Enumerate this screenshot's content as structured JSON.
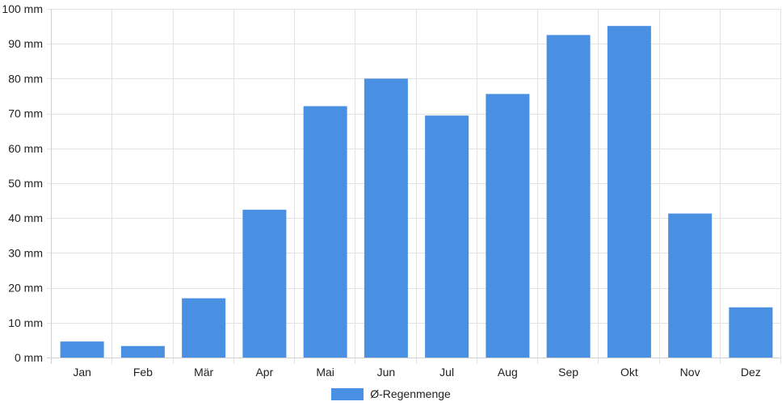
{
  "colors": {
    "bar": "#4a90e2",
    "grid": "#e3e3e3",
    "axis": "#d0d0d0"
  },
  "chart_data": {
    "type": "bar",
    "categories": [
      "Jan",
      "Feb",
      "Mär",
      "Apr",
      "Mai",
      "Jun",
      "Jul",
      "Aug",
      "Sep",
      "Okt",
      "Nov",
      "Dez"
    ],
    "series": [
      {
        "name": "Ø-Regenmenge",
        "values": [
          4.6,
          3.3,
          17.0,
          42.4,
          72.1,
          80.0,
          69.4,
          75.6,
          92.5,
          95.1,
          41.3,
          14.4
        ]
      }
    ],
    "ylim": [
      0,
      100
    ],
    "yticks": [
      0,
      10,
      20,
      30,
      40,
      50,
      60,
      70,
      80,
      90,
      100
    ],
    "ytick_labels": [
      "0 mm",
      "10 mm",
      "20 mm",
      "30 mm",
      "40 mm",
      "50 mm",
      "60 mm",
      "70 mm",
      "80 mm",
      "90 mm",
      "100 mm"
    ],
    "grid": true,
    "legend_position": "bottom"
  }
}
